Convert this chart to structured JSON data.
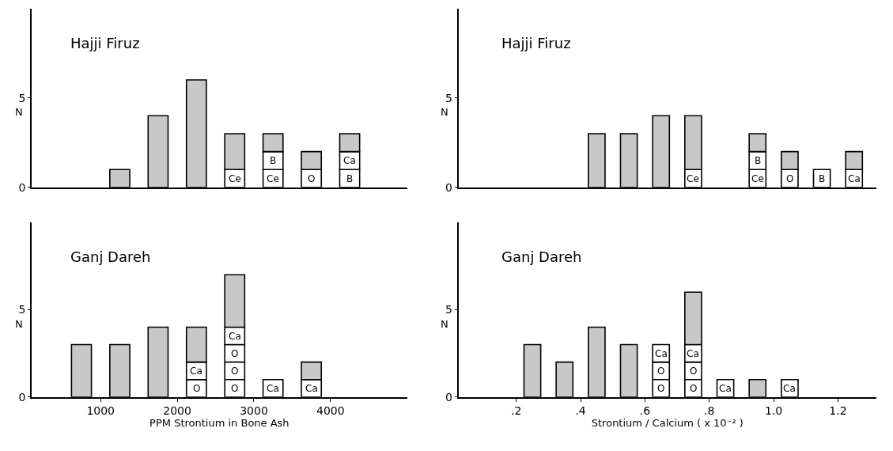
{
  "chart_data": [
    {
      "type": "bar",
      "title": "Hajji Firuz",
      "ylabel": "N",
      "stacked": true,
      "x": [
        1250,
        1750,
        2250,
        2750,
        3250,
        3750,
        4250
      ],
      "xlim": [
        100,
        5000
      ],
      "ylim": [
        0,
        10
      ],
      "yticks": [
        0,
        5
      ],
      "tick_labels": "y",
      "series": [
        {
          "name": "O",
          "color": "#ffffff",
          "values": [
            null,
            null,
            null,
            null,
            null,
            1,
            null
          ]
        },
        {
          "name": "Ce",
          "color": "#ffffff",
          "values": [
            null,
            null,
            null,
            1,
            1,
            null,
            null
          ]
        },
        {
          "name": "B",
          "color": "#ffffff",
          "values": [
            null,
            null,
            null,
            null,
            1,
            null,
            1
          ]
        },
        {
          "name": "Ca",
          "color": "#ffffff",
          "values": [
            null,
            null,
            null,
            null,
            null,
            null,
            1
          ]
        },
        {
          "color": "#c8c8c8",
          "values": [
            1,
            4,
            6,
            2,
            1,
            1,
            1
          ]
        }
      ]
    },
    {
      "type": "bar",
      "title": "Hajji Firuz",
      "ylabel": "N",
      "stacked": true,
      "x": [
        0.45,
        0.55,
        0.65,
        0.75,
        0.95,
        1.05,
        1.15,
        1.25
      ],
      "xlim": [
        0.02,
        1.32
      ],
      "ylim": [
        0,
        10
      ],
      "yticks": [
        0,
        5
      ],
      "tick_labels": "y",
      "series": [
        {
          "name": "O",
          "color": "#ffffff",
          "values": [
            null,
            null,
            null,
            null,
            null,
            1,
            null,
            null
          ]
        },
        {
          "name": "Ce",
          "color": "#ffffff",
          "values": [
            null,
            null,
            null,
            1,
            1,
            null,
            null,
            null
          ]
        },
        {
          "name": "B",
          "color": "#ffffff",
          "values": [
            null,
            null,
            null,
            null,
            1,
            null,
            1,
            null
          ]
        },
        {
          "name": "Ca",
          "color": "#ffffff",
          "values": [
            null,
            null,
            null,
            null,
            null,
            null,
            null,
            1
          ]
        },
        {
          "color": "#c8c8c8",
          "values": [
            3,
            3,
            4,
            3,
            1,
            1,
            null,
            1
          ]
        }
      ]
    },
    {
      "type": "bar",
      "title": "Ganj Dareh",
      "ylabel": "N",
      "xlabel": "PPM Strontium in Bone Ash",
      "stacked": true,
      "x": [
        750,
        1250,
        1750,
        2250,
        2750,
        3250,
        3750
      ],
      "xlim": [
        100,
        5000
      ],
      "xticks": [
        1000,
        2000,
        3000,
        4000
      ],
      "ylim": [
        0,
        10
      ],
      "yticks": [
        0,
        5
      ],
      "series": [
        {
          "name": "O",
          "color": "#ffffff",
          "values": [
            null,
            null,
            null,
            1,
            3,
            null,
            null
          ]
        },
        {
          "name": "Ca",
          "color": "#ffffff",
          "values": [
            null,
            null,
            null,
            1,
            1,
            1,
            1
          ]
        },
        {
          "color": "#c8c8c8",
          "values": [
            3,
            3,
            4,
            2,
            3,
            null,
            1
          ]
        }
      ]
    },
    {
      "type": "bar",
      "title": "Ganj Dareh",
      "ylabel": "N",
      "xlabel": "Strontium / Calcium ( x 10⁻² )",
      "stacked": true,
      "x": [
        0.25,
        0.35,
        0.45,
        0.55,
        0.65,
        0.75,
        0.85,
        0.95,
        1.05
      ],
      "xlim": [
        0.02,
        1.32
      ],
      "xticks": [
        {
          "value": 0.2,
          "label": ".2"
        },
        {
          "value": 0.4,
          "label": ".4"
        },
        {
          "value": 0.6,
          "label": ".6"
        },
        {
          "value": 0.8,
          "label": ".8"
        },
        {
          "value": 1.0,
          "label": "1.0"
        },
        {
          "value": 1.2,
          "label": "1.2"
        }
      ],
      "ylim": [
        0,
        10
      ],
      "yticks": [
        0,
        5
      ],
      "series": [
        {
          "name": "O",
          "color": "#ffffff",
          "values": [
            null,
            null,
            null,
            null,
            2,
            2,
            null,
            null,
            null
          ]
        },
        {
          "name": "Ca",
          "color": "#ffffff",
          "values": [
            null,
            null,
            null,
            null,
            1,
            1,
            1,
            null,
            1
          ]
        },
        {
          "color": "#c8c8c8",
          "values": [
            3,
            2,
            4,
            3,
            null,
            3,
            null,
            1,
            null
          ]
        }
      ]
    }
  ]
}
